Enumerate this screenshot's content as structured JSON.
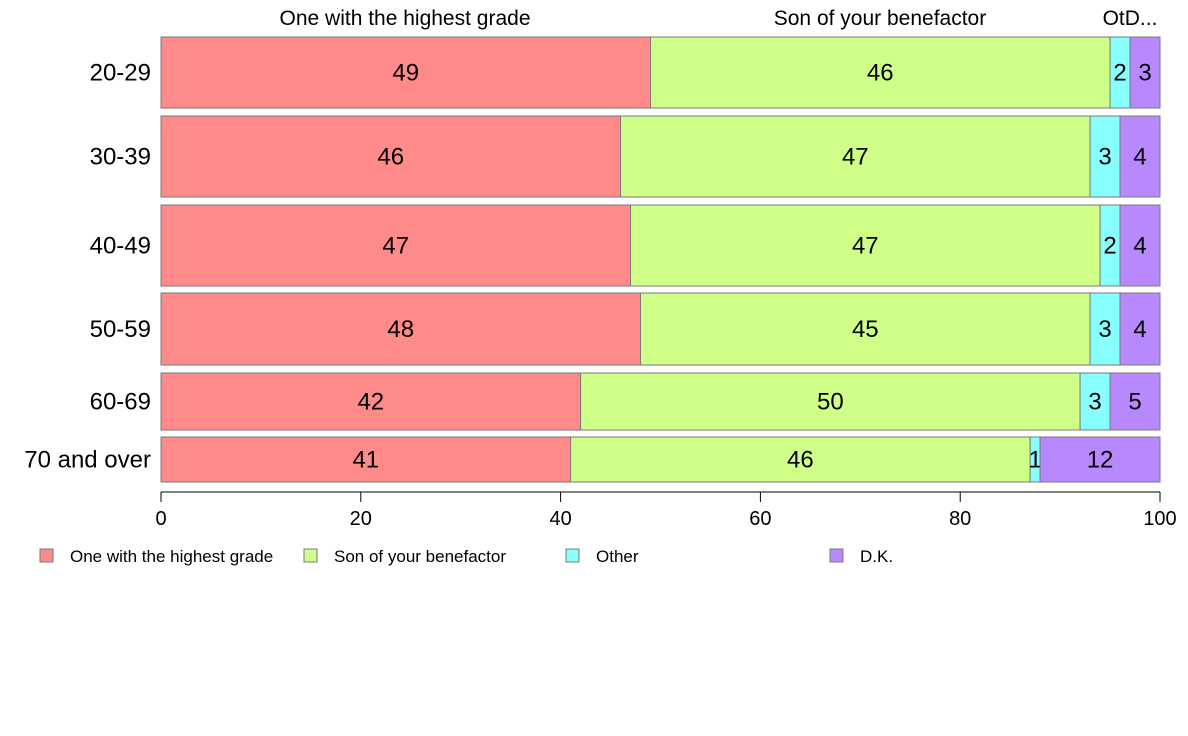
{
  "chart_data": {
    "type": "bar",
    "orientation": "horizontal",
    "stacked": true,
    "title": "",
    "xlabel": "",
    "ylabel": "",
    "xlim": [
      0,
      100
    ],
    "x_ticks": [
      0,
      20,
      40,
      60,
      80,
      100
    ],
    "grid": false,
    "legend_position": "bottom",
    "top_labels": [
      "One with the highest grade",
      "Son of your benefactor",
      "OtD..."
    ],
    "categories": [
      "20-29",
      "30-39",
      "40-49",
      "50-59",
      "60-69",
      "70 and over"
    ],
    "series": [
      {
        "name": "One with the highest grade",
        "color": "#ff8a8a",
        "values": [
          49,
          46,
          47,
          48,
          42,
          41
        ]
      },
      {
        "name": "Son of your benefactor",
        "color": "#d0ff88",
        "values": [
          46,
          47,
          47,
          45,
          50,
          46
        ]
      },
      {
        "name": "Other",
        "color": "#88ffff",
        "values": [
          2,
          3,
          2,
          3,
          3,
          1
        ]
      },
      {
        "name": "D.K.",
        "color": "#b888ff",
        "values": [
          3,
          4,
          4,
          4,
          5,
          12
        ]
      }
    ]
  }
}
